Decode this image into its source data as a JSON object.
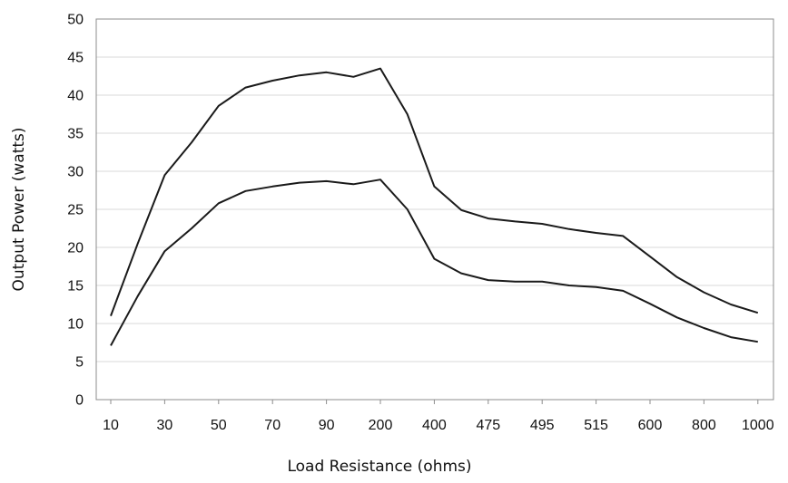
{
  "chart_data": {
    "type": "line",
    "title": "",
    "xlabel": "Load Resistance (ohms)",
    "ylabel": "Output Power (watts)",
    "ylim": [
      0,
      50
    ],
    "yticks": [
      0,
      5,
      10,
      15,
      20,
      25,
      30,
      35,
      40,
      45,
      50
    ],
    "grid": "horizontal",
    "legend": "none",
    "x_tick_labels": [
      "10",
      "30",
      "50",
      "70",
      "90",
      "200",
      "400",
      "475",
      "495",
      "515",
      "600",
      "800",
      "1000"
    ],
    "x": [
      "10",
      "20",
      "30",
      "40",
      "50",
      "60",
      "70",
      "80",
      "90",
      "100",
      "200",
      "300",
      "400",
      "450",
      "475",
      "485",
      "495",
      "505",
      "515",
      "525",
      "600",
      "700",
      "800",
      "900",
      "1000"
    ],
    "series": [
      {
        "values": [
          11.0,
          20.5,
          29.5,
          33.8,
          38.6,
          41.0,
          41.9,
          42.6,
          43.0,
          42.4,
          43.5,
          37.5,
          28.0,
          24.9,
          23.8,
          23.4,
          23.1,
          22.4,
          21.9,
          21.5,
          18.8,
          16.1,
          14.1,
          12.5,
          11.4
        ]
      },
      {
        "values": [
          7.1,
          13.6,
          19.5,
          22.5,
          25.8,
          27.4,
          28.0,
          28.5,
          28.7,
          28.3,
          28.9,
          25.0,
          18.5,
          16.6,
          15.7,
          15.5,
          15.5,
          15.0,
          14.8,
          14.3,
          12.6,
          10.8,
          9.4,
          8.2,
          7.6
        ]
      }
    ],
    "colors": {
      "line": "#1a1a1a",
      "grid": "#d9d9d9",
      "axis": "#8c8c8c"
    }
  }
}
